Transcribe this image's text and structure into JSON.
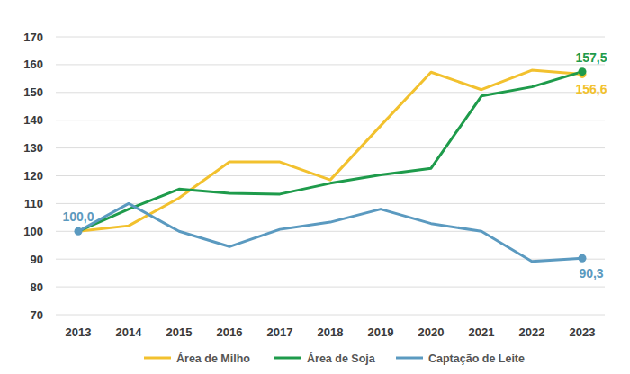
{
  "chart_data": {
    "type": "line",
    "categories": [
      "2013",
      "2014",
      "2015",
      "2016",
      "2017",
      "2018",
      "2019",
      "2020",
      "2021",
      "2022",
      "2023"
    ],
    "ylim": [
      70,
      170
    ],
    "yticks": [
      70,
      80,
      90,
      100,
      110,
      120,
      130,
      140,
      150,
      160,
      170
    ],
    "grid": true,
    "legend": "bottom",
    "series": [
      {
        "name": "Área de Milho",
        "color": "#f2c12e",
        "values": [
          100,
          102,
          112,
          125,
          125,
          118.5,
          138,
          157.3,
          151,
          158,
          156.6
        ],
        "value_labels": [
          null,
          null,
          null,
          null,
          null,
          null,
          null,
          null,
          null,
          null,
          "156,6"
        ]
      },
      {
        "name": "Área de Soja",
        "color": "#1e9b4b",
        "values": [
          100,
          108,
          115.2,
          113.7,
          113.4,
          117.3,
          120.3,
          122.7,
          148.7,
          152,
          157.5
        ],
        "value_labels": [
          null,
          null,
          null,
          null,
          null,
          null,
          null,
          null,
          null,
          null,
          "157,5"
        ]
      },
      {
        "name": "Captação de Leite",
        "color": "#5b9ac0",
        "values": [
          100,
          110,
          100,
          94.5,
          100.7,
          103.3,
          108,
          102.8,
          100,
          89.2,
          90.3
        ],
        "value_labels": [
          "100,0",
          null,
          null,
          null,
          null,
          null,
          null,
          null,
          null,
          null,
          "90,3"
        ]
      }
    ]
  }
}
